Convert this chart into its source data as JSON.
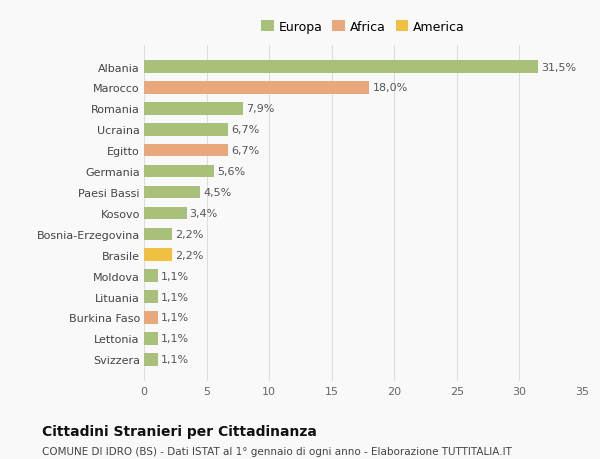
{
  "categories": [
    "Albania",
    "Marocco",
    "Romania",
    "Ucraina",
    "Egitto",
    "Germania",
    "Paesi Bassi",
    "Kosovo",
    "Bosnia-Erzegovina",
    "Brasile",
    "Moldova",
    "Lituania",
    "Burkina Faso",
    "Lettonia",
    "Svizzera"
  ],
  "values": [
    31.5,
    18.0,
    7.9,
    6.7,
    6.7,
    5.6,
    4.5,
    3.4,
    2.2,
    2.2,
    1.1,
    1.1,
    1.1,
    1.1,
    1.1
  ],
  "labels": [
    "31,5%",
    "18,0%",
    "7,9%",
    "6,7%",
    "6,7%",
    "5,6%",
    "4,5%",
    "3,4%",
    "2,2%",
    "2,2%",
    "1,1%",
    "1,1%",
    "1,1%",
    "1,1%",
    "1,1%"
  ],
  "colors": [
    "#a8c07a",
    "#e8a87c",
    "#a8c07a",
    "#a8c07a",
    "#e8a87c",
    "#a8c07a",
    "#a8c07a",
    "#a8c07a",
    "#a8c07a",
    "#f0c040",
    "#a8c07a",
    "#a8c07a",
    "#e8a87c",
    "#a8c07a",
    "#a8c07a"
  ],
  "legend": [
    {
      "label": "Europa",
      "color": "#a8c07a"
    },
    {
      "label": "Africa",
      "color": "#e8a87c"
    },
    {
      "label": "America",
      "color": "#f0c040"
    }
  ],
  "xlim": [
    0,
    35
  ],
  "xticks": [
    0,
    5,
    10,
    15,
    20,
    25,
    30,
    35
  ],
  "title": "Cittadini Stranieri per Cittadinanza",
  "subtitle": "COMUNE DI IDRO (BS) - Dati ISTAT al 1° gennaio di ogni anno - Elaborazione TUTTITALIA.IT",
  "background_color": "#f9f9f9",
  "grid_color": "#dddddd",
  "bar_height": 0.6,
  "label_fontsize": 8,
  "ytick_fontsize": 8,
  "xtick_fontsize": 8,
  "legend_fontsize": 9,
  "title_fontsize": 10,
  "subtitle_fontsize": 7.5
}
